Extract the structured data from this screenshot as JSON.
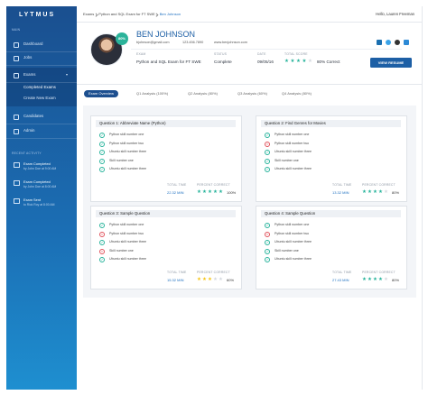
{
  "sidebar": {
    "logo": "LYTMUS",
    "main_label": "MAIN",
    "nav": [
      "Dashboard",
      "Jobs",
      "Exams"
    ],
    "subnav": [
      "Completed Exams",
      "Create New Exam"
    ],
    "nav2": [
      "Candidates",
      "Admin"
    ],
    "recent_label": "RECENT ACTIVITY",
    "activity": [
      {
        "title": "Exam Completed",
        "detail": "by John Doe at 9:00 AM"
      },
      {
        "title": "Exam Completed",
        "detail": "by John Doe at 8:00 AM"
      },
      {
        "title": "Exam Sent",
        "detail": "to Rick Roy at 8:00 AM"
      }
    ]
  },
  "header": {
    "breadcrumb": [
      "Exams",
      "Python and SQL Exam for FT SWE",
      "Ben Johnson"
    ],
    "greeting": "Hello, Lauren Freeman"
  },
  "profile": {
    "name": "BEN JOHNSON",
    "badge": "80%",
    "email": "bjohnson@gmail.com",
    "phone": "123.456.7890",
    "website": "www.benjohnson.com",
    "fields": [
      {
        "label": "EXAM",
        "value": "Python and SQL Exam for FT SWE"
      },
      {
        "label": "STATUS",
        "value": "Complete"
      },
      {
        "label": "DATE",
        "value": "09/05/16"
      },
      {
        "label": "TOTAL SCORE",
        "value": "80% Correct",
        "stars_filled": 4
      }
    ],
    "button": "VIEW RESUME"
  },
  "tabs": [
    "Exam Overview",
    "Q1 Analysis (100%)",
    "Q2 Analysis (80%)",
    "Q3 Analysis (60%)",
    "Q4 Analysis (80%)"
  ],
  "questions": [
    {
      "title": "Question 1: Abbreviate Name (Python)",
      "skills": [
        {
          "label": "Python skill number one",
          "passed": true
        },
        {
          "label": "Python skill number two",
          "passed": true
        },
        {
          "label": "Ubuntu skill number three",
          "passed": true
        },
        {
          "label": "Skill number one",
          "passed": true
        },
        {
          "label": "Ubuntu skill number three",
          "passed": true
        }
      ],
      "time_label": "TOTAL TIME",
      "time": "22.32 MIN",
      "percent_label": "PERCENT CORRECT",
      "percent": "100%",
      "stars_filled": 5,
      "star_color": "#27b39b"
    },
    {
      "title": "Question 2: Find Genres for Movies",
      "skills": [
        {
          "label": "Python skill number one",
          "passed": true
        },
        {
          "label": "Python skill number two",
          "passed": false
        },
        {
          "label": "Ubuntu skill number three",
          "passed": true
        },
        {
          "label": "Skill number one",
          "passed": true
        },
        {
          "label": "Ubuntu skill number three",
          "passed": true
        }
      ],
      "time_label": "TOTAL TIME",
      "time": "13.32 MIN",
      "percent_label": "PERCENT CORRECT",
      "percent": "80%",
      "stars_filled": 4,
      "star_color": "#27b39b"
    },
    {
      "title": "Question 3: Sample Question",
      "skills": [
        {
          "label": "Python skill number one",
          "passed": true
        },
        {
          "label": "Python skill number two",
          "passed": false
        },
        {
          "label": "Ubuntu skill number three",
          "passed": true
        },
        {
          "label": "Skill number one",
          "passed": false
        },
        {
          "label": "Ubuntu skill number three",
          "passed": true
        }
      ],
      "time_label": "TOTAL TIME",
      "time": "15.32 MIN",
      "percent_label": "PERCENT CORRECT",
      "percent": "60%",
      "stars_filled": 3,
      "star_color": "#f5c518"
    },
    {
      "title": "Question 4: Sample Question",
      "skills": [
        {
          "label": "Python skill number one",
          "passed": true
        },
        {
          "label": "Python skill number two",
          "passed": false
        },
        {
          "label": "Ubuntu skill number three",
          "passed": true
        },
        {
          "label": "Skill number one",
          "passed": true
        },
        {
          "label": "Ubuntu skill number three",
          "passed": true
        }
      ],
      "time_label": "TOTAL TIME",
      "time": "27.43 MIN",
      "percent_label": "PERCENT CORRECT",
      "percent": "80%",
      "stars_filled": 4,
      "star_color": "#27b39b"
    }
  ]
}
